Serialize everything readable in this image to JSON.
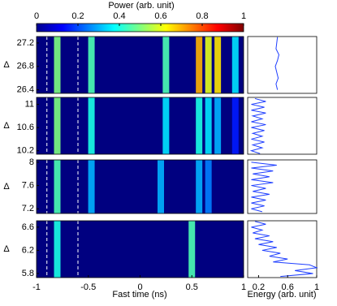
{
  "chart_data": {
    "type": "heatmap",
    "colorbar_label": "Power (arb. unit)",
    "clim": [
      0,
      1
    ],
    "cticks": [
      0,
      0.2,
      0.4,
      0.6,
      0.8,
      1
    ],
    "xlabel": "Fast time (ns)",
    "xlim": [
      -1,
      1
    ],
    "xticks": [
      -1,
      -0.5,
      0,
      0.5,
      1
    ],
    "energy_xlabel": "Energy (arb. unit)",
    "energy_xlim": [
      0.05,
      1
    ],
    "energy_xticks": [
      0.2,
      0.6,
      1
    ],
    "markers": [
      -0.9,
      -0.6
    ],
    "panels": [
      {
        "ylabel": "Δ",
        "ylim": [
          26.34,
          27.31
        ],
        "yticks": [
          26.4,
          26.8,
          27.2
        ],
        "stripes": {
          "x": [
            -0.8,
            -0.47,
            0.25,
            0.57,
            0.66,
            0.75,
            0.92
          ],
          "values": [
            0.5,
            0.45,
            0.45,
            0.7,
            0.6,
            0.65,
            0.35
          ]
        },
        "energy": {
          "delta": [
            26.4,
            26.5,
            26.6,
            26.7,
            26.8,
            26.9,
            27.0,
            27.1,
            27.2,
            27.3
          ],
          "values": [
            0.46,
            0.44,
            0.47,
            0.45,
            0.43,
            0.46,
            0.48,
            0.44,
            0.45,
            0.46
          ]
        }
      },
      {
        "ylabel": "Δ",
        "ylim": [
          10.14,
          11.12
        ],
        "yticks": [
          10.2,
          10.6,
          11.0
        ],
        "stripes": {
          "x": [
            -0.8,
            -0.47,
            0.25,
            0.57,
            0.66,
            0.75,
            0.92
          ],
          "values": [
            0.5,
            0.4,
            0.35,
            0.4,
            0.35,
            0.3,
            0.15
          ]
        },
        "energy": {
          "delta": [
            11.1,
            11.05,
            11.0,
            10.95,
            10.9,
            10.85,
            10.8,
            10.75,
            10.7,
            10.65,
            10.6,
            10.55,
            10.5,
            10.45,
            10.4,
            10.35,
            10.3,
            10.25,
            10.2,
            10.15
          ],
          "values": [
            0.15,
            0.3,
            0.1,
            0.28,
            0.1,
            0.3,
            0.12,
            0.25,
            0.1,
            0.3,
            0.1,
            0.28,
            0.12,
            0.25,
            0.1,
            0.28,
            0.12,
            0.25,
            0.1,
            0.22
          ]
        }
      },
      {
        "ylabel": "Δ",
        "ylim": [
          7.12,
          8.04
        ],
        "yticks": [
          7.2,
          7.6,
          8.0
        ],
        "stripes": {
          "x": [
            -0.8,
            -0.47,
            0.2,
            0.57,
            0.66
          ],
          "values": [
            0.45,
            0.3,
            0.3,
            0.3,
            0.25
          ]
        },
        "energy": {
          "delta": [
            8.0,
            7.95,
            7.9,
            7.85,
            7.8,
            7.75,
            7.7,
            7.65,
            7.6,
            7.55,
            7.5,
            7.45,
            7.4,
            7.35,
            7.3,
            7.25,
            7.2,
            7.15
          ],
          "values": [
            0.1,
            0.45,
            0.1,
            0.4,
            0.12,
            0.35,
            0.1,
            0.4,
            0.1,
            0.3,
            0.12,
            0.35,
            0.1,
            0.3,
            0.1,
            0.28,
            0.1,
            0.25
          ]
        }
      },
      {
        "ylabel": "Δ",
        "ylim": [
          5.73,
          6.71
        ],
        "yticks": [
          5.8,
          6.2,
          6.6
        ],
        "stripes": {
          "x": [
            -0.8,
            0.5
          ],
          "values": [
            0.4,
            0.45
          ]
        },
        "energy": {
          "delta": [
            6.7,
            6.65,
            6.6,
            6.55,
            6.5,
            6.45,
            6.4,
            6.35,
            6.3,
            6.25,
            6.2,
            6.15,
            6.1,
            6.05,
            6.0,
            5.95,
            5.9,
            5.85,
            5.8,
            5.75
          ],
          "values": [
            0.15,
            0.3,
            0.1,
            0.25,
            0.12,
            0.35,
            0.15,
            0.4,
            0.2,
            0.45,
            0.25,
            0.5,
            0.35,
            0.6,
            0.4,
            0.9,
            1.0,
            0.7,
            0.95,
            0.5
          ]
        }
      }
    ]
  }
}
